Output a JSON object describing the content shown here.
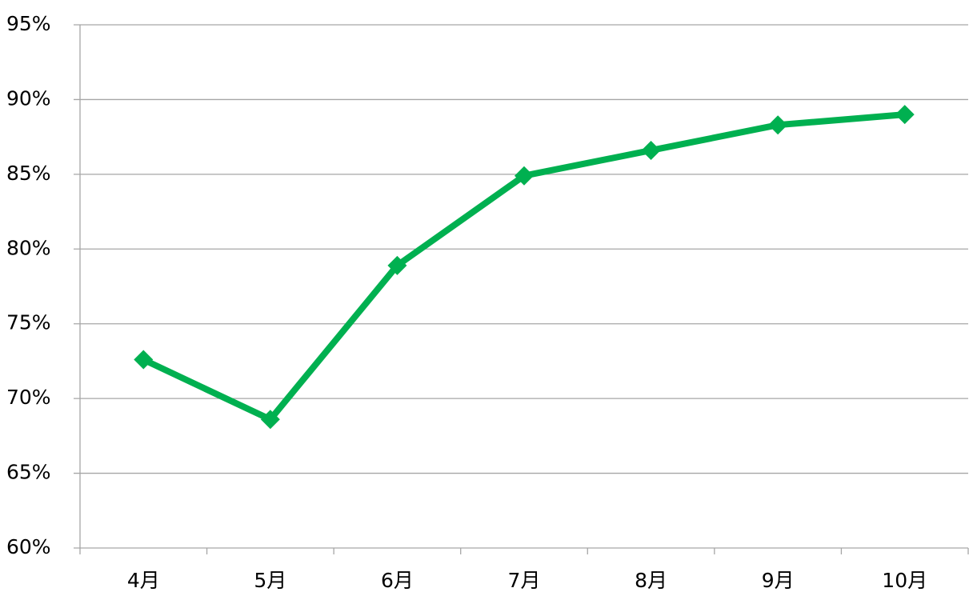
{
  "chart_data": {
    "type": "line",
    "categories": [
      "4月",
      "5月",
      "6月",
      "7月",
      "8月",
      "9月",
      "10月"
    ],
    "series": [
      {
        "color": "#00b050",
        "values": [
          72.6,
          68.6,
          78.9,
          84.9,
          86.6,
          88.3,
          89.0
        ]
      }
    ],
    "ylim": [
      60,
      95
    ],
    "yticks": [
      {
        "value": 60,
        "label": "60%"
      },
      {
        "value": 65,
        "label": "65%"
      },
      {
        "value": 70,
        "label": "70%"
      },
      {
        "value": 75,
        "label": "75%"
      },
      {
        "value": 80,
        "label": "80%"
      },
      {
        "value": 85,
        "label": "85%"
      },
      {
        "value": 90,
        "label": "90%"
      },
      {
        "value": 95,
        "label": "95%"
      }
    ],
    "grid": true,
    "markers": "diamond"
  }
}
